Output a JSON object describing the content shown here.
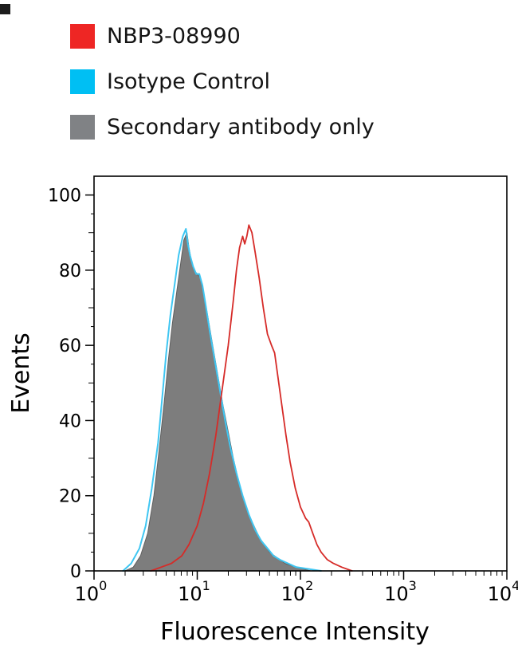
{
  "legend": {
    "items": [
      {
        "label": "NBP3-08990",
        "color": "#ee2624"
      },
      {
        "label": "Isotype Control",
        "color": "#00bff3"
      },
      {
        "label": "Secondary antibody only",
        "color": "#808285"
      }
    ]
  },
  "chart_data": {
    "type": "area",
    "xlabel": "Fluorescence Intensity",
    "ylabel": "Events",
    "x_scale": "log10",
    "x_base_label": "10",
    "xlog_range": [
      0,
      4
    ],
    "xtick_exponents": [
      0,
      1,
      2,
      3,
      4
    ],
    "ylim": [
      0,
      105
    ],
    "yticks": [
      0,
      20,
      40,
      60,
      80,
      100
    ],
    "y_minor_step": 5,
    "grid": false,
    "legend_position": "top-left-outside",
    "frame_color": "#000000",
    "series": [
      {
        "name": "Secondary antibody only",
        "style": "filled",
        "color": "#7d7d7d",
        "stroke": "#5f5f5f",
        "stroke_width": 1,
        "points": [
          [
            0.3,
            0
          ],
          [
            0.38,
            1
          ],
          [
            0.45,
            4
          ],
          [
            0.52,
            10
          ],
          [
            0.58,
            20
          ],
          [
            0.63,
            32
          ],
          [
            0.68,
            45
          ],
          [
            0.72,
            56
          ],
          [
            0.76,
            66
          ],
          [
            0.8,
            74
          ],
          [
            0.84,
            82
          ],
          [
            0.87,
            88
          ],
          [
            0.9,
            90
          ],
          [
            0.92,
            86
          ],
          [
            0.94,
            83
          ],
          [
            0.97,
            80
          ],
          [
            1.0,
            79
          ],
          [
            1.03,
            78
          ],
          [
            1.06,
            74
          ],
          [
            1.1,
            68
          ],
          [
            1.15,
            60
          ],
          [
            1.2,
            52
          ],
          [
            1.25,
            44
          ],
          [
            1.3,
            37
          ],
          [
            1.35,
            30
          ],
          [
            1.4,
            24
          ],
          [
            1.45,
            19
          ],
          [
            1.5,
            15
          ],
          [
            1.55,
            12
          ],
          [
            1.6,
            9
          ],
          [
            1.65,
            7
          ],
          [
            1.7,
            5
          ],
          [
            1.75,
            4
          ],
          [
            1.8,
            3
          ],
          [
            1.85,
            2
          ],
          [
            1.9,
            1.5
          ],
          [
            2.0,
            0.7
          ],
          [
            2.1,
            0
          ]
        ]
      },
      {
        "name": "Isotype Control",
        "style": "line",
        "color": "#3fc6f2",
        "stroke_width": 2,
        "points": [
          [
            0.28,
            0
          ],
          [
            0.36,
            2
          ],
          [
            0.44,
            6
          ],
          [
            0.5,
            12
          ],
          [
            0.56,
            22
          ],
          [
            0.62,
            34
          ],
          [
            0.66,
            46
          ],
          [
            0.7,
            58
          ],
          [
            0.74,
            68
          ],
          [
            0.78,
            76
          ],
          [
            0.82,
            84
          ],
          [
            0.86,
            89
          ],
          [
            0.89,
            91
          ],
          [
            0.91,
            87
          ],
          [
            0.93,
            84
          ],
          [
            0.96,
            81
          ],
          [
            0.99,
            79
          ],
          [
            1.02,
            79
          ],
          [
            1.05,
            76
          ],
          [
            1.08,
            71
          ],
          [
            1.12,
            64
          ],
          [
            1.17,
            56
          ],
          [
            1.22,
            48
          ],
          [
            1.27,
            40
          ],
          [
            1.32,
            33
          ],
          [
            1.38,
            26
          ],
          [
            1.44,
            20
          ],
          [
            1.5,
            15
          ],
          [
            1.56,
            11
          ],
          [
            1.62,
            8
          ],
          [
            1.68,
            6
          ],
          [
            1.74,
            4
          ],
          [
            1.8,
            3
          ],
          [
            1.88,
            2
          ],
          [
            1.96,
            1
          ],
          [
            2.08,
            0.5
          ],
          [
            2.2,
            0
          ]
        ]
      },
      {
        "name": "NBP3-08990",
        "style": "line",
        "color": "#d62b28",
        "stroke_width": 1.8,
        "points": [
          [
            0.55,
            0
          ],
          [
            0.65,
            1
          ],
          [
            0.75,
            2
          ],
          [
            0.85,
            4
          ],
          [
            0.92,
            7
          ],
          [
            1.0,
            12
          ],
          [
            1.06,
            18
          ],
          [
            1.12,
            26
          ],
          [
            1.18,
            36
          ],
          [
            1.24,
            48
          ],
          [
            1.3,
            60
          ],
          [
            1.35,
            72
          ],
          [
            1.38,
            80
          ],
          [
            1.41,
            86
          ],
          [
            1.44,
            89
          ],
          [
            1.46,
            87
          ],
          [
            1.48,
            89
          ],
          [
            1.5,
            92
          ],
          [
            1.53,
            90
          ],
          [
            1.56,
            85
          ],
          [
            1.6,
            78
          ],
          [
            1.64,
            70
          ],
          [
            1.68,
            63
          ],
          [
            1.72,
            60
          ],
          [
            1.75,
            58
          ],
          [
            1.78,
            52
          ],
          [
            1.82,
            44
          ],
          [
            1.86,
            36
          ],
          [
            1.9,
            29
          ],
          [
            1.95,
            22
          ],
          [
            2.0,
            17
          ],
          [
            2.05,
            14
          ],
          [
            2.08,
            13
          ],
          [
            2.12,
            10
          ],
          [
            2.16,
            7
          ],
          [
            2.2,
            5
          ],
          [
            2.26,
            3
          ],
          [
            2.32,
            2
          ],
          [
            2.4,
            1
          ],
          [
            2.5,
            0
          ]
        ]
      }
    ]
  }
}
